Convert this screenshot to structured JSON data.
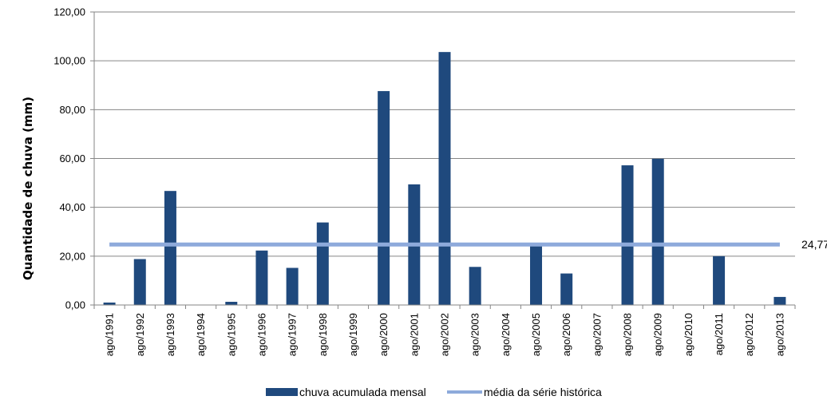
{
  "chart_data": {
    "type": "bar",
    "title": "",
    "xlabel": "",
    "ylabel": "Quantidade de chuva (mm)",
    "ylim": [
      0,
      120
    ],
    "ytick_labels": [
      "0,00",
      "20,00",
      "40,00",
      "60,00",
      "80,00",
      "100,00",
      "120,00"
    ],
    "ytick_values": [
      0,
      20,
      40,
      60,
      80,
      100,
      120
    ],
    "grid": true,
    "legend_position": "bottom",
    "categories": [
      "ago/1991",
      "ago/1992",
      "ago/1993",
      "ago/1994",
      "ago/1995",
      "ago/1996",
      "ago/1997",
      "ago/1998",
      "ago/1999",
      "ago/2000",
      "ago/2001",
      "ago/2002",
      "ago/2003",
      "ago/2004",
      "ago/2005",
      "ago/2006",
      "ago/2007",
      "ago/2008",
      "ago/2009",
      "ago/2010",
      "ago/2011",
      "ago/2012",
      "ago/2013"
    ],
    "series": [
      {
        "name": "chuva acumulada mensal",
        "type": "bar",
        "color": "#1f497d",
        "values": [
          1.0,
          18.8,
          46.7,
          0,
          1.3,
          22.3,
          15.2,
          33.8,
          0,
          87.6,
          49.4,
          103.6,
          15.6,
          0,
          24.4,
          12.9,
          0,
          57.2,
          59.9,
          0,
          20.0,
          0,
          3.3
        ]
      },
      {
        "name": "média da série histórica",
        "type": "line",
        "color": "#8eaadb",
        "value": 24.77,
        "label": "24,77"
      }
    ]
  }
}
